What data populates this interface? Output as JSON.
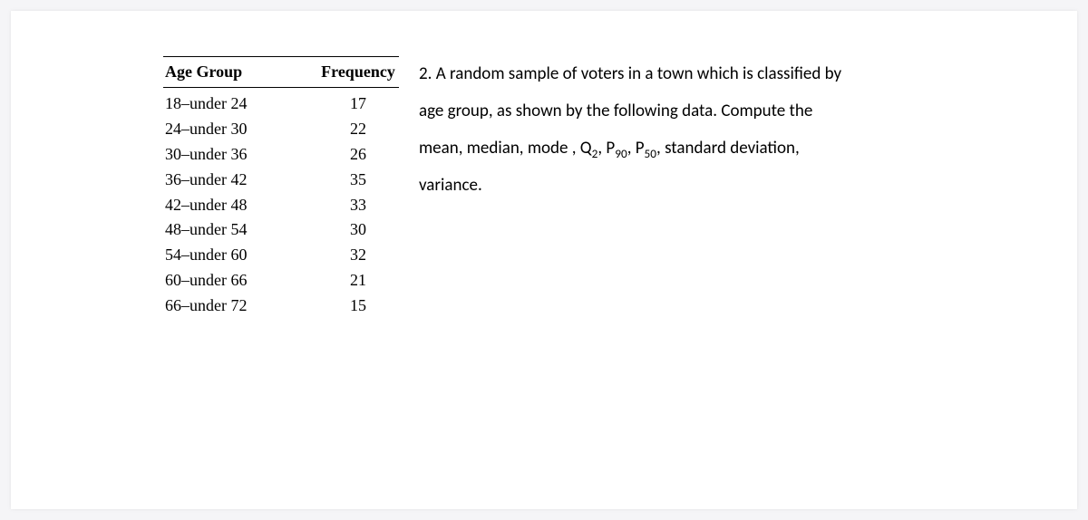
{
  "page": {
    "background_color": "#f5f5f7",
    "paper_color": "#ffffff"
  },
  "table": {
    "columns": [
      "Age Group",
      "Frequency"
    ],
    "header_fontfamily": "Times New Roman",
    "header_fontsize": 18,
    "header_fontweight": "bold",
    "body_fontfamily": "Times New Roman",
    "body_fontsize": 18,
    "border_color": "#000000",
    "rows": [
      {
        "age": "18–under 24",
        "freq": "17"
      },
      {
        "age": "24–under 30",
        "freq": "22"
      },
      {
        "age": "30–under 36",
        "freq": "26"
      },
      {
        "age": "36–under 42",
        "freq": "35"
      },
      {
        "age": "42–under 48",
        "freq": "33"
      },
      {
        "age": "48–under 54",
        "freq": "30"
      },
      {
        "age": "54–under 60",
        "freq": "32"
      },
      {
        "age": "60–under 66",
        "freq": "21"
      },
      {
        "age": "66–under 72",
        "freq": "15"
      }
    ]
  },
  "question": {
    "fontfamily": "Calibri",
    "fontsize": 19,
    "text_color": "#000000",
    "lines": {
      "l1": "2. A random sample of voters in a town which is classified by",
      "l2": "age group, as shown by the following data. Compute the",
      "l3_pre": "mean, median, mode , Q",
      "l3_sub1": "2",
      "l3_mid1": ", P",
      "l3_sub2": "90",
      "l3_mid2": ", P",
      "l3_sub3": "50",
      "l3_post": ", standard deviation,",
      "l4": "variance."
    }
  }
}
